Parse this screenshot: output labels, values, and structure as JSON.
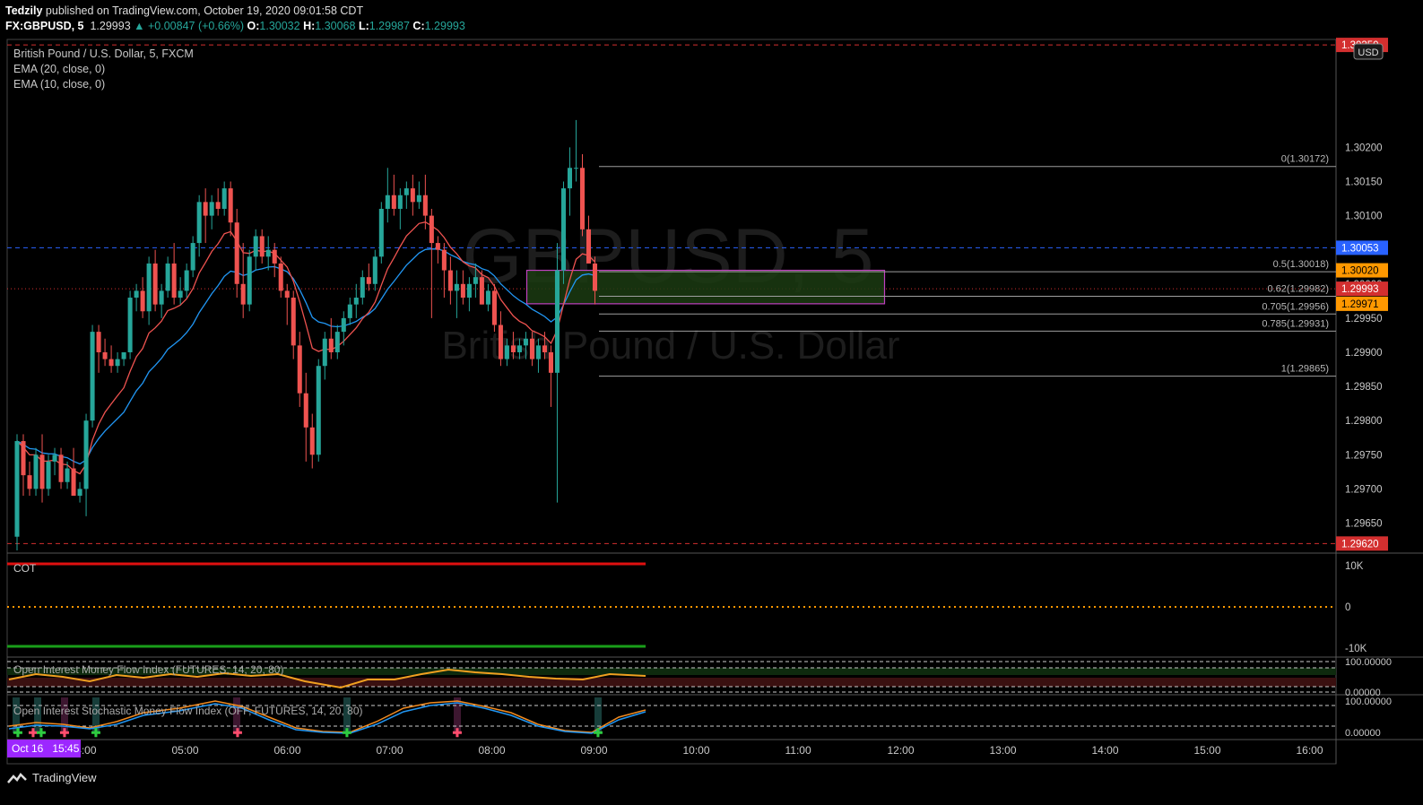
{
  "header": {
    "publisher": "Tedzily",
    "published_line": " published on TradingView.com, October 19, 2020 09:01:58 CDT",
    "symbol": "FX:GBPUSD, 5",
    "last": "1.29993",
    "change": "▲ +0.00847 (+0.66%)",
    "o_label": "O:",
    "o": "1.30032",
    "h_label": "H:",
    "h": "1.30068",
    "l_label": "L:",
    "l": "1.29987",
    "c_label": "C:",
    "c": "1.29993"
  },
  "legend": {
    "title": "British Pound / U.S. Dollar, 5, FXCM",
    "ema20": "EMA (20, close, 0)",
    "ema10": "EMA (10, close, 0)"
  },
  "watermark": {
    "symbol": "GBPUSD, 5",
    "name": "British Pound / U.S. Dollar"
  },
  "currency": "USD",
  "price_labels": [
    {
      "text": "1.30350",
      "bg": "#d32f2f"
    },
    {
      "text": "1.30053",
      "bg": "#2962ff"
    },
    {
      "text": "1.30020",
      "bg": "#ff9800"
    },
    {
      "text": "1.29993",
      "bg": "#d32f2f"
    },
    {
      "text": "1.29971",
      "bg": "#ff9800"
    },
    {
      "text": "1.29620",
      "bg": "#d32f2f"
    }
  ],
  "fib_levels": [
    {
      "label": "0(1.30172)",
      "price": 1.30172
    },
    {
      "label": "0.5(1.30018)",
      "price": 1.30018
    },
    {
      "label": "0.62(1.29982)",
      "price": 1.29982
    },
    {
      "label": "0.705(1.29956)",
      "price": 1.29956
    },
    {
      "label": "0.785(1.29931)",
      "price": 1.29931
    },
    {
      "label": "1(1.29865)",
      "price": 1.29865
    }
  ],
  "indicators": {
    "cot": {
      "name": "COT",
      "ticks": [
        "10K",
        "0",
        "-10K"
      ]
    },
    "oimfi": {
      "name": "Open Interest Money Flow Index (FUTURES, 14, 20, 80)",
      "ticks": [
        "100.00000",
        "0.00000"
      ]
    },
    "oismfi": {
      "name": "Open Interest Stochastic Money Flow Index (OFF, FUTURES, 14, 20, 80)",
      "ticks": [
        "100.00000",
        "0.00000"
      ]
    }
  },
  "time_axis": {
    "first_label": "Oct 16   15:45",
    "labels": [
      "00",
      "04:00",
      "05:00",
      "06:00",
      "07:00",
      "08:00",
      "09:00",
      "10:00",
      "11:00",
      "12:00",
      "13:00",
      "14:00",
      "15:00",
      "16:00"
    ]
  },
  "footer": {
    "brand": "TradingView"
  },
  "colors": {
    "up": "#26a69a",
    "down": "#ef5350",
    "ema20": "#2196f3",
    "ema10": "#ef5350",
    "zone_border": "#c040c0",
    "zone_fill": "#1b3b12"
  },
  "chart_data": {
    "type": "candlestick",
    "symbol": "FX:GBPUSD",
    "interval": "5",
    "ylim": [
      1.29606,
      1.30358
    ],
    "y_ticks": [
      1.2965,
      1.297,
      1.2975,
      1.298,
      1.2985,
      1.299,
      1.2995,
      1.3,
      1.3005,
      1.301,
      1.3015,
      1.302
    ],
    "x_start": "03:15",
    "x_end": "16:15",
    "hlines": [
      {
        "price": 1.3035,
        "color": "#d32f2f",
        "style": "dashed"
      },
      {
        "price": 1.30053,
        "color": "#2962ff",
        "style": "dashed"
      },
      {
        "price": 1.29993,
        "color": "#d32f2f",
        "style": "dotted"
      },
      {
        "price": 1.2962,
        "color": "#d32f2f",
        "style": "dashed"
      }
    ],
    "zone": {
      "x_from": "08:20",
      "x_to": "11:50",
      "price_top": 1.3002,
      "price_bottom": 1.29971
    },
    "candles_ohlc": [
      [
        1.2963,
        1.2978,
        1.2961,
        1.2977
      ],
      [
        1.2977,
        1.2978,
        1.2969,
        1.2972
      ],
      [
        1.2972,
        1.2974,
        1.2969,
        1.297
      ],
      [
        1.297,
        1.2976,
        1.2969,
        1.2975
      ],
      [
        1.2975,
        1.2978,
        1.2968,
        1.297
      ],
      [
        1.297,
        1.2975,
        1.2969,
        1.2974
      ],
      [
        1.2974,
        1.2976,
        1.2972,
        1.2975
      ],
      [
        1.2975,
        1.2976,
        1.297,
        1.2971
      ],
      [
        1.2971,
        1.2974,
        1.297,
        1.2973
      ],
      [
        1.2973,
        1.2976,
        1.2969,
        1.2969
      ],
      [
        1.2969,
        1.2971,
        1.2968,
        1.297
      ],
      [
        1.297,
        1.2981,
        1.2966,
        1.298
      ],
      [
        1.298,
        1.2994,
        1.2979,
        1.2993
      ],
      [
        1.2993,
        1.2994,
        1.2987,
        1.299
      ],
      [
        1.299,
        1.2992,
        1.2988,
        1.2989
      ],
      [
        1.2989,
        1.2991,
        1.2987,
        1.2988
      ],
      [
        1.2988,
        1.299,
        1.2987,
        1.2989
      ],
      [
        1.2989,
        1.299,
        1.2988,
        1.299
      ],
      [
        1.299,
        1.2999,
        1.2989,
        1.2998
      ],
      [
        1.2998,
        1.3,
        1.2996,
        1.2999
      ],
      [
        1.2999,
        1.3001,
        1.2995,
        1.2996
      ],
      [
        1.2996,
        1.3004,
        1.2994,
        1.3003
      ],
      [
        1.3003,
        1.3005,
        1.2996,
        1.2997
      ],
      [
        1.2997,
        1.3,
        1.2995,
        1.2999
      ],
      [
        1.2999,
        1.3004,
        1.2998,
        1.3003
      ],
      [
        1.3003,
        1.3006,
        1.2997,
        1.2998
      ],
      [
        1.2998,
        1.3001,
        1.2997,
        1.2999
      ],
      [
        1.2999,
        1.3003,
        1.2998,
        1.3002
      ],
      [
        1.3002,
        1.3007,
        1.3001,
        1.3006
      ],
      [
        1.3006,
        1.3013,
        1.3004,
        1.3012
      ],
      [
        1.3012,
        1.3014,
        1.3006,
        1.301
      ],
      [
        1.301,
        1.3013,
        1.3008,
        1.3012
      ],
      [
        1.3012,
        1.3014,
        1.301,
        1.3011
      ],
      [
        1.3011,
        1.3015,
        1.301,
        1.3014
      ],
      [
        1.3014,
        1.3015,
        1.3007,
        1.3009
      ],
      [
        1.3009,
        1.3011,
        1.2998,
        1.3
      ],
      [
        1.3,
        1.3006,
        1.2995,
        1.2997
      ],
      [
        1.2997,
        1.3005,
        1.2996,
        1.3004
      ],
      [
        1.3004,
        1.3008,
        1.3002,
        1.3007
      ],
      [
        1.3007,
        1.3008,
        1.3003,
        1.3004
      ],
      [
        1.3004,
        1.3007,
        1.3002,
        1.3005
      ],
      [
        1.3005,
        1.3006,
        1.3001,
        1.3003
      ],
      [
        1.3003,
        1.3004,
        1.2998,
        1.2999
      ],
      [
        1.2999,
        1.3,
        1.2994,
        1.2998
      ],
      [
        1.2998,
        1.2999,
        1.2989,
        1.2991
      ],
      [
        1.2991,
        1.2993,
        1.2982,
        1.2984
      ],
      [
        1.2984,
        1.2987,
        1.2974,
        1.2979
      ],
      [
        1.2979,
        1.2981,
        1.2973,
        1.2975
      ],
      [
        1.2975,
        1.2989,
        1.2974,
        1.2988
      ],
      [
        1.2988,
        1.2993,
        1.2986,
        1.2992
      ],
      [
        1.2992,
        1.2995,
        1.2989,
        1.299
      ],
      [
        1.299,
        1.2994,
        1.2989,
        1.2993
      ],
      [
        1.2993,
        1.2996,
        1.2991,
        1.2995
      ],
      [
        1.2995,
        1.2998,
        1.2994,
        1.2997
      ],
      [
        1.2997,
        1.3,
        1.2995,
        1.2998
      ],
      [
        1.2998,
        1.3002,
        1.2997,
        1.3001
      ],
      [
        1.3001,
        1.3003,
        1.2999,
        1.3
      ],
      [
        1.3,
        1.3005,
        1.2999,
        1.3004
      ],
      [
        1.3004,
        1.3012,
        1.3003,
        1.3011
      ],
      [
        1.3011,
        1.3017,
        1.3009,
        1.3013
      ],
      [
        1.3013,
        1.3016,
        1.301,
        1.3011
      ],
      [
        1.3011,
        1.3014,
        1.3008,
        1.3013
      ],
      [
        1.3013,
        1.3015,
        1.3011,
        1.3014
      ],
      [
        1.3014,
        1.3016,
        1.301,
        1.3012
      ],
      [
        1.3012,
        1.3015,
        1.3011,
        1.3013
      ],
      [
        1.3013,
        1.3016,
        1.3008,
        1.301
      ],
      [
        1.301,
        1.3011,
        1.2995,
        1.3006
      ],
      [
        1.3006,
        1.3007,
        1.3003,
        1.3005
      ],
      [
        1.3005,
        1.3006,
        1.2998,
        1.3002
      ],
      [
        1.3002,
        1.3004,
        1.2997,
        1.2999
      ],
      [
        1.2999,
        1.3002,
        1.2995,
        1.3
      ],
      [
        1.3,
        1.3002,
        1.2997,
        1.2998
      ],
      [
        1.2998,
        1.3001,
        1.2996,
        1.3
      ],
      [
        1.3,
        1.3003,
        1.2998,
        1.3001
      ],
      [
        1.3001,
        1.3002,
        1.2997,
        1.2997
      ],
      [
        1.2997,
        1.3,
        1.2996,
        1.2999
      ],
      [
        1.2999,
        1.3,
        1.2993,
        1.2994
      ],
      [
        1.2994,
        1.2996,
        1.2988,
        1.2989
      ],
      [
        1.2989,
        1.2992,
        1.2988,
        1.2991
      ],
      [
        1.2991,
        1.2993,
        1.2989,
        1.299
      ],
      [
        1.299,
        1.2992,
        1.2989,
        1.2991
      ],
      [
        1.2991,
        1.2993,
        1.2989,
        1.2992
      ],
      [
        1.2992,
        1.2993,
        1.2988,
        1.2989
      ],
      [
        1.2989,
        1.2992,
        1.2987,
        1.2991
      ],
      [
        1.2991,
        1.2993,
        1.2989,
        1.299
      ],
      [
        1.299,
        1.2991,
        1.2982,
        1.2987
      ],
      [
        1.2987,
        1.3006,
        1.2968,
        1.3002
      ],
      [
        1.3002,
        1.3015,
        1.3,
        1.3014
      ],
      [
        1.3014,
        1.302,
        1.301,
        1.3017
      ],
      [
        1.3017,
        1.3024,
        1.3015,
        1.3017
      ],
      [
        1.3017,
        1.3019,
        1.3007,
        1.3008
      ],
      [
        1.3008,
        1.301,
        1.3003,
        1.3003
      ],
      [
        1.3003,
        1.3004,
        1.2997,
        1.2999
      ]
    ]
  }
}
